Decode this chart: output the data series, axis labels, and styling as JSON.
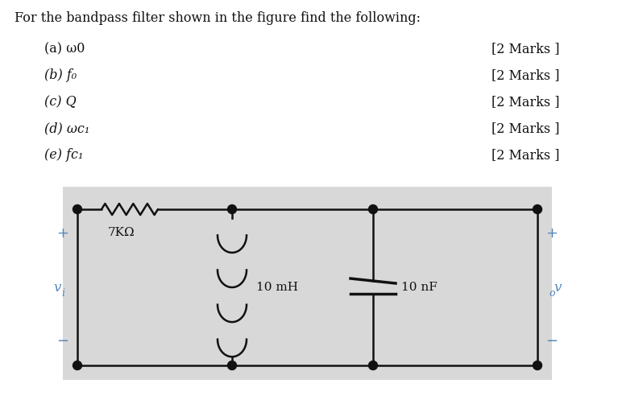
{
  "title": "For the bandpass filter shown in the figure find the following:",
  "questions": [
    {
      "label_a": "(a) ",
      "label_b": "ω0",
      "marks": "[2 Marks ]",
      "italic_ab": false,
      "italic_b": false
    },
    {
      "label_a": "(b) ",
      "label_b": "f₀",
      "marks": "[2 Marks ]",
      "italic_ab": true,
      "italic_b": true
    },
    {
      "label_a": "(c) ",
      "label_b": "Q",
      "marks": "[2 Marks ]",
      "italic_ab": true,
      "italic_b": true
    },
    {
      "label_a": "(d) ",
      "label_b": "ωc₁",
      "marks": "[2 Marks ]",
      "italic_ab": true,
      "italic_b": true
    },
    {
      "label_a": "(e) ",
      "label_b": "fc₁",
      "marks": "[2 Marks ]",
      "italic_ab": true,
      "italic_b": true
    }
  ],
  "bg_color": "#ffffff",
  "circuit_bg": "#d8d8d8",
  "circuit_line_color": "#111111",
  "node_color": "#111111",
  "label_color_blue": "#5588bb",
  "resistor_label": "7KΩ",
  "inductor_label": "10 mH",
  "capacitor_label": "10 nF",
  "vi_label": "v",
  "vi_sub": "i",
  "vo_label": "v",
  "vo_sub": "o",
  "fig_width": 7.67,
  "fig_height": 4.92,
  "dpi": 100
}
